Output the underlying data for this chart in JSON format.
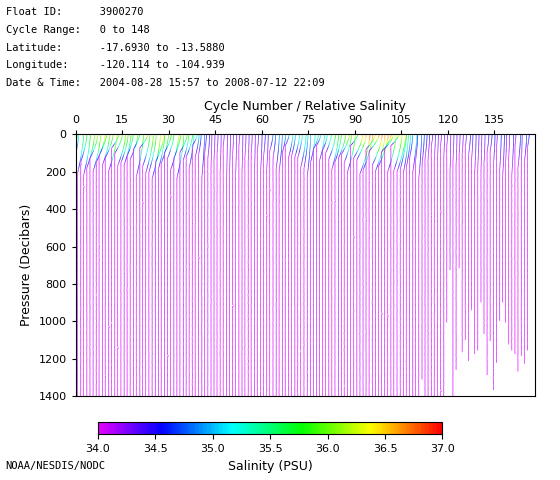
{
  "float_id": "3900270",
  "cycle_range": "0 to 148",
  "latitude": "-17.6930 to -13.5880",
  "longitude": "-120.114 to -104.939",
  "date_time": "2004-08-28 15:57 to 2008-07-12 22:09",
  "n_cycles": 148,
  "pressure_max": 1400,
  "pressure_min": 0,
  "salinity_min": 34.0,
  "salinity_max": 37.0,
  "colorbar_ticks": [
    34.0,
    34.5,
    35.0,
    35.5,
    36.0,
    36.5,
    37.0
  ],
  "x_ticks": [
    0,
    15,
    30,
    45,
    60,
    75,
    90,
    105,
    120,
    135
  ],
  "y_ticks": [
    0,
    200,
    400,
    600,
    800,
    1000,
    1200,
    1400
  ],
  "top_xlabel": "Cycle Number / Relative Salinity",
  "ylabel": "Pressure (Decibars)",
  "colorbar_label": "Salinity (PSU)",
  "background_color": "#ffffff",
  "footer": "NOAA/NESDIS/NODC",
  "n_pressure_points": 300,
  "deep_sal": 34.05,
  "sal_scale": 1.2,
  "sal_ref": 35.2,
  "trans_depth_base": 150,
  "colormap": "gist_rainbow"
}
